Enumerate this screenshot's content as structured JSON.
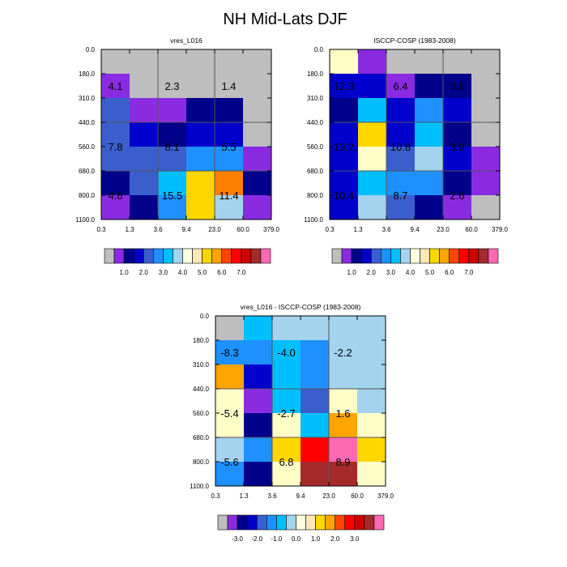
{
  "figure": {
    "title": "NH Mid-Lats DJF"
  },
  "colors": {
    "cell_palette": [
      "#bebebe",
      "#8a2be2",
      "#00008b",
      "#0000cd",
      "#3a5fcd",
      "#1e90ff",
      "#00bfff",
      "#a4d3ee",
      "#ffffe0",
      "#ffe7ba",
      "#ffd700",
      "#ffa500",
      "#ff4500",
      "#ff0000",
      "#cd0000",
      "#a52a2a",
      "#ff69b4"
    ]
  },
  "colorbars": {
    "absolute": {
      "tick_labels": [
        "1.0",
        "2.0",
        "3.0",
        "4.0",
        "5.0",
        "6.0",
        "7.0"
      ]
    },
    "difference": {
      "tick_labels": [
        "-3.0",
        "-2.0",
        "-1.0",
        "0.0",
        "1.0",
        "2.0",
        "3.0"
      ]
    }
  },
  "chart_data": [
    {
      "type": "heatmap",
      "title": "vres_L016",
      "x_tick_labels": [
        "0.3",
        "1.3",
        "3.6",
        "9.4",
        "23.0",
        "60.0",
        "379.0"
      ],
      "y_tick_labels": [
        "0.0",
        "180.0",
        "310.0",
        "440.0",
        "560.0",
        "680.0",
        "800.0",
        "1100.0"
      ],
      "cells": [
        [
          "#bebebe",
          "#bebebe",
          "#bebebe",
          "#bebebe",
          "#bebebe",
          "#bebebe"
        ],
        [
          "#8a2be2",
          "#bebebe",
          "#bebebe",
          "#bebebe",
          "#bebebe",
          "#bebebe"
        ],
        [
          "#3a5fcd",
          "#8a2be2",
          "#8a2be2",
          "#00008b",
          "#00008b",
          "#bebebe"
        ],
        [
          "#3a5fcd",
          "#0000cd",
          "#00008b",
          "#0000cd",
          "#0000cd",
          "#bebebe"
        ],
        [
          "#3a5fcd",
          "#3a5fcd",
          "#3a5fcd",
          "#1e90ff",
          "#1e90ff",
          "#8a2be2"
        ],
        [
          "#00008b",
          "#3a5fcd",
          "#00bfff",
          "#ffd700",
          "#ff7f00",
          "#00008b"
        ],
        [
          "#8a2be2",
          "#00008b",
          "#1e90ff",
          "#ffd700",
          "#a4d3ee",
          "#8a2be2"
        ]
      ],
      "annotations": [
        {
          "text": "4.1",
          "col": 0.5,
          "row": 1.5
        },
        {
          "text": "2.3",
          "col": 2.5,
          "row": 1.5
        },
        {
          "text": "1.4",
          "col": 4.5,
          "row": 1.5
        },
        {
          "text": "7.8",
          "col": 0.5,
          "row": 4.0
        },
        {
          "text": "8.1",
          "col": 2.5,
          "row": 4.0
        },
        {
          "text": "5.5",
          "col": 4.5,
          "row": 4.0
        },
        {
          "text": "4.8",
          "col": 0.5,
          "row": 6.0
        },
        {
          "text": "15.5",
          "col": 2.5,
          "row": 6.0
        },
        {
          "text": "11.4",
          "col": 4.5,
          "row": 6.0
        }
      ]
    },
    {
      "type": "heatmap",
      "title": "ISCCP-COSP (1983-2008)",
      "x_tick_labels": [
        "0.3",
        "1.3",
        "3.6",
        "9.4",
        "23.0",
        "60.0",
        "379.0"
      ],
      "y_tick_labels": [
        "0.0",
        "180.0",
        "310.0",
        "440.0",
        "560.0",
        "680.0",
        "800.0",
        "1100.0"
      ],
      "cells": [
        [
          "#ffffc8",
          "#8a2be2",
          "#bebebe",
          "#bebebe",
          "#bebebe",
          "#bebebe"
        ],
        [
          "#0000cd",
          "#0000cd",
          "#8a2be2",
          "#00008b",
          "#00008b",
          "#bebebe"
        ],
        [
          "#00008b",
          "#00bfff",
          "#0000cd",
          "#1e90ff",
          "#0000cd",
          "#bebebe"
        ],
        [
          "#0000cd",
          "#ffd700",
          "#0000cd",
          "#00bfff",
          "#00008b",
          "#bebebe"
        ],
        [
          "#0000cd",
          "#ffffc8",
          "#3a5fcd",
          "#a4d3ee",
          "#0000cd",
          "#8a2be2"
        ],
        [
          "#0000cd",
          "#00bfff",
          "#1e90ff",
          "#1e90ff",
          "#00008b",
          "#8a2be2"
        ],
        [
          "#0000cd",
          "#a4d3ee",
          "#3a5fcd",
          "#00008b",
          "#8a2be2",
          "#bebebe"
        ]
      ],
      "annotations": [
        {
          "text": "12.3",
          "col": 0.5,
          "row": 1.5
        },
        {
          "text": "6.4",
          "col": 2.5,
          "row": 1.5
        },
        {
          "text": "3.6",
          "col": 4.5,
          "row": 1.5
        },
        {
          "text": "13.2",
          "col": 0.5,
          "row": 4.0
        },
        {
          "text": "10.8",
          "col": 2.5,
          "row": 4.0
        },
        {
          "text": "3.9",
          "col": 4.5,
          "row": 4.0
        },
        {
          "text": "10.4",
          "col": 0.5,
          "row": 6.0
        },
        {
          "text": "8.7",
          "col": 2.5,
          "row": 6.0
        },
        {
          "text": "2.6",
          "col": 4.5,
          "row": 6.0
        }
      ]
    },
    {
      "type": "heatmap",
      "title": "vres_L016 - ISCCP-COSP (1983-2008)",
      "x_tick_labels": [
        "0.3",
        "1.3",
        "3.6",
        "9.4",
        "23.0",
        "60.0",
        "379.0"
      ],
      "y_tick_labels": [
        "0.0",
        "180.0",
        "310.0",
        "440.0",
        "560.0",
        "680.0",
        "800.0",
        "1100.0"
      ],
      "cells": [
        [
          "#bebebe",
          "#00bfff",
          "#a4d3ee",
          "#a4d3ee",
          "#a4d3ee",
          "#a4d3ee"
        ],
        [
          "#1e90ff",
          "#1e90ff",
          "#00bfff",
          "#1e90ff",
          "#a4d3ee",
          "#a4d3ee"
        ],
        [
          "#ffa500",
          "#0000cd",
          "#00bfff",
          "#1e90ff",
          "#a4d3ee",
          "#a4d3ee"
        ],
        [
          "#ffffc8",
          "#8a2be2",
          "#00bfff",
          "#3a5fcd",
          "#ffffc8",
          "#a4d3ee"
        ],
        [
          "#ffffc8",
          "#00008b",
          "#ffffc8",
          "#00bfff",
          "#ffa500",
          "#ffffc8"
        ],
        [
          "#a4d3ee",
          "#1e90ff",
          "#ffd700",
          "#ff0000",
          "#ff69b4",
          "#ffd700"
        ],
        [
          "#1e90ff",
          "#00008b",
          "#ffffc8",
          "#a52a2a",
          "#a52a2a",
          "#ffffc8"
        ]
      ],
      "annotations": [
        {
          "text": "-8.3",
          "col": 0.5,
          "row": 1.5
        },
        {
          "text": "-4.0",
          "col": 2.5,
          "row": 1.5
        },
        {
          "text": "-2.2",
          "col": 4.5,
          "row": 1.5
        },
        {
          "text": "-5.4",
          "col": 0.5,
          "row": 4.0
        },
        {
          "text": "-2.7",
          "col": 2.5,
          "row": 4.0
        },
        {
          "text": "1.6",
          "col": 4.5,
          "row": 4.0
        },
        {
          "text": "-5.6",
          "col": 0.5,
          "row": 6.0
        },
        {
          "text": "6.8",
          "col": 2.5,
          "row": 6.0
        },
        {
          "text": "8.9",
          "col": 4.5,
          "row": 6.0
        }
      ]
    }
  ]
}
